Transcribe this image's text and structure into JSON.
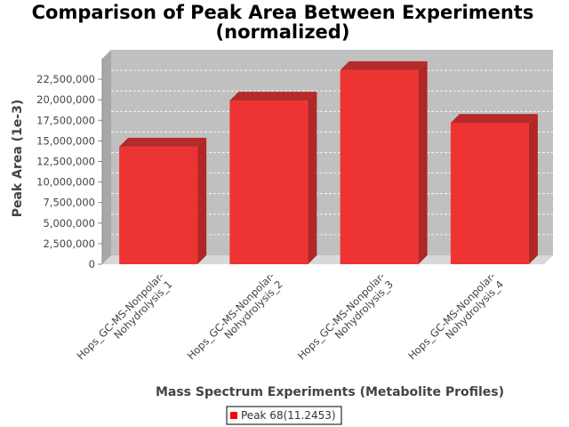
{
  "chart_data": {
    "type": "bar",
    "title_line1": "Comparison of Peak Area Between Experiments",
    "title_line2": "(normalized)",
    "xlabel": "Mass Spectrum Experiments (Metabolite Profiles)",
    "ylabel": "Peak Area (1e-3)",
    "ylim": [
      0,
      25000000
    ],
    "yticks": [
      "0",
      "2,500,000",
      "5,000,000",
      "7,500,000",
      "10,000,000",
      "12,500,000",
      "15,000,000",
      "17,500,000",
      "20,000,000",
      "22,500,000"
    ],
    "categories": [
      [
        "Hops_GC-MS-Nonpolar-",
        "Nohydrolysis_1"
      ],
      [
        "Hops_GC-MS-Nonpolar-",
        "Nohydrolysis_2"
      ],
      [
        "Hops_GC-MS-Nonpolar-",
        "Nohydrolysis_3"
      ],
      [
        "Hops_GC-MS-Nonpolar-",
        "Nohydrolysis_4"
      ]
    ],
    "series": [
      {
        "name": "Peak 68(11.2453)",
        "values": [
          14300000,
          19900000,
          23600000,
          17200000
        ]
      }
    ],
    "grid": true,
    "legend": "bottom-center",
    "colors": {
      "bar": "#ee3333",
      "bar_top": "#b52a2a",
      "bar_side": "#b22626",
      "plot_bg": "#c0c0c0"
    }
  }
}
